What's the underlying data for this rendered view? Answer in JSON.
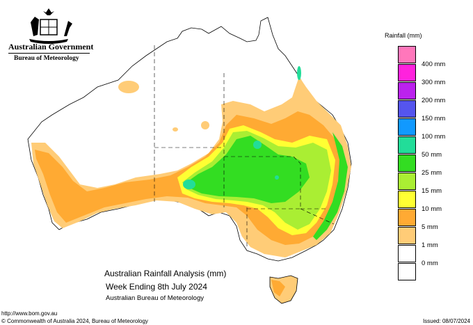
{
  "header": {
    "government": "Australian Government",
    "agency": "Bureau of Meteorology"
  },
  "map": {
    "title_line1": "Australian Rainfall Analysis (mm)",
    "title_line2": "Week Ending 8th July 2024",
    "title_line3": "Australian Bureau of Meteorology"
  },
  "footer": {
    "url": "http://www.bom.gov.au",
    "copyright": "© Commonwealth of Australia 2024, Bureau of Meteorology",
    "issued": "Issued: 08/07/2024"
  },
  "legend": {
    "title": "Rainfall (mm)",
    "items": [
      {
        "label": "",
        "color": "#ff77bb"
      },
      {
        "label": "400 mm",
        "color": "#ff22dd"
      },
      {
        "label": "300 mm",
        "color": "#bb22ee"
      },
      {
        "label": "200 mm",
        "color": "#5555ee"
      },
      {
        "label": "150 mm",
        "color": "#1199ff"
      },
      {
        "label": "100 mm",
        "color": "#22dd99"
      },
      {
        "label": "50 mm",
        "color": "#33dd22"
      },
      {
        "label": "25 mm",
        "color": "#aaee33"
      },
      {
        "label": "15 mm",
        "color": "#ffff33"
      },
      {
        "label": "10 mm",
        "color": "#ffaa33"
      },
      {
        "label": "5 mm",
        "color": "#ffcc77"
      },
      {
        "label": "1 mm",
        "color": "#ffffff"
      },
      {
        "label": "0 mm",
        "color": "#ffffff"
      }
    ]
  }
}
